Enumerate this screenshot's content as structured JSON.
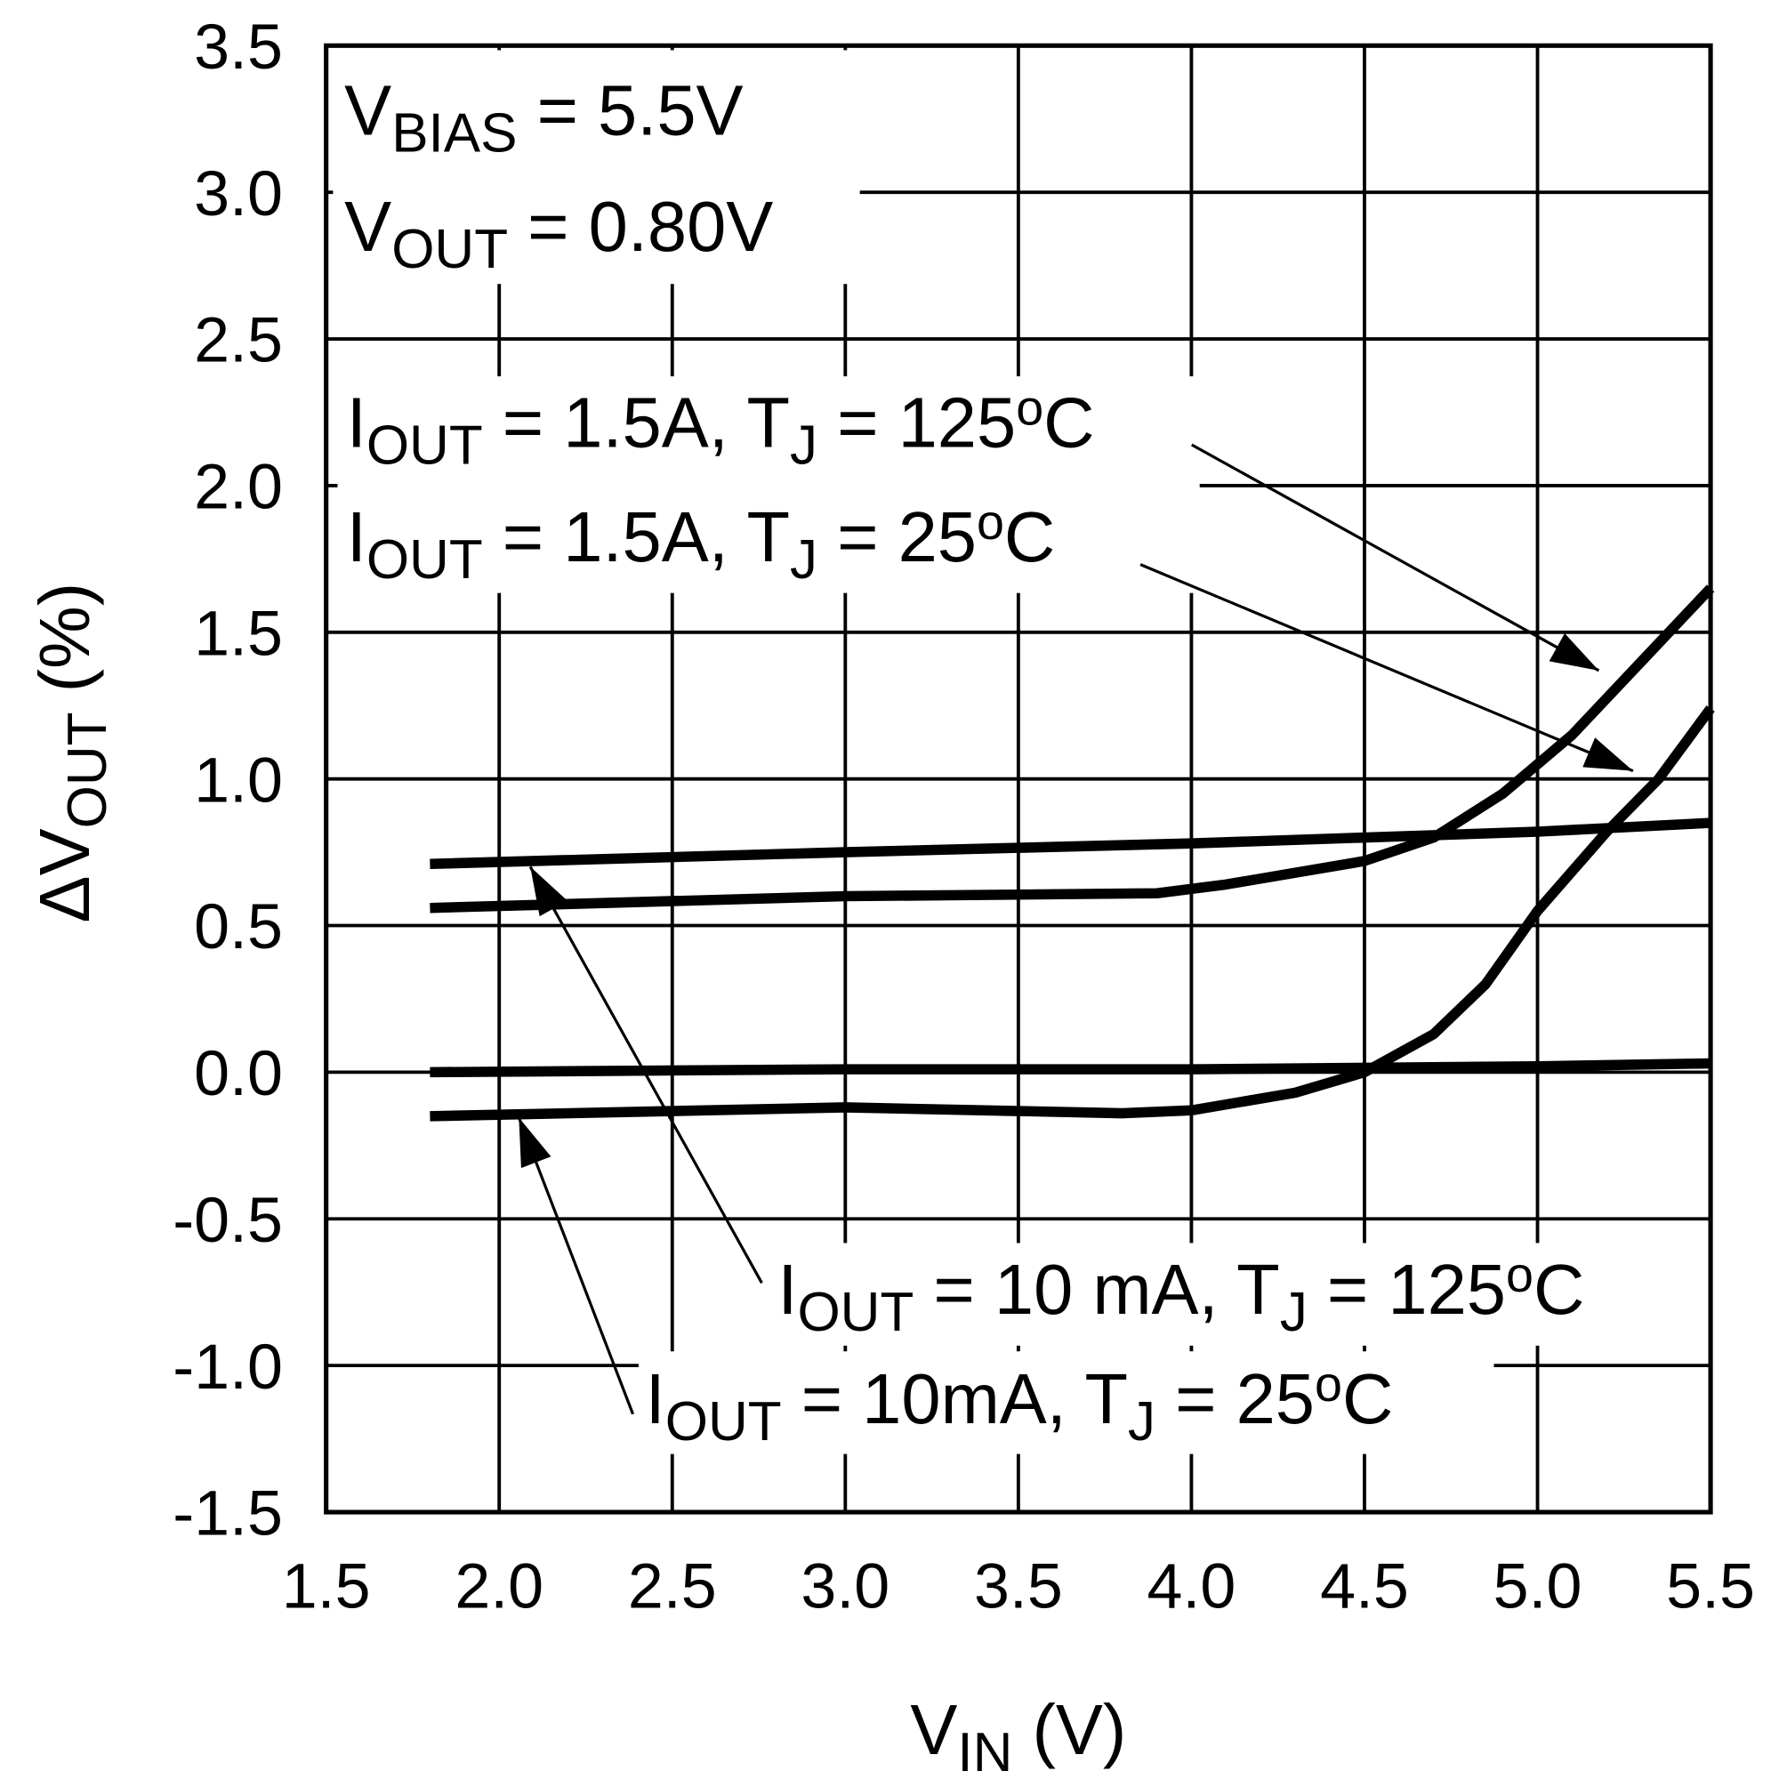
{
  "chart_data": {
    "type": "line",
    "xlabel": {
      "main": "V",
      "sub": "IN",
      "rest": " (V)"
    },
    "ylabel": {
      "prefix": "ΔV",
      "sub": "OUT",
      "rest": " (%)"
    },
    "xlim": [
      1.5,
      5.5
    ],
    "ylim": [
      -1.5,
      3.5
    ],
    "xticks": [
      "1.5",
      "2.0",
      "2.5",
      "3.0",
      "3.5",
      "4.0",
      "4.5",
      "5.0",
      "5.5"
    ],
    "yticks": [
      "3.5",
      "3.0",
      "2.5",
      "2.0",
      "1.5",
      "1.0",
      "0.5",
      "0.0",
      "-0.5",
      "-1.0",
      "-1.5"
    ],
    "grid": true,
    "line_color": "#000000",
    "conditions": [
      [
        {
          "t": "V"
        },
        {
          "t": "BIAS",
          "sub": true
        },
        {
          "t": " = 5.5V"
        }
      ],
      [
        {
          "t": "V"
        },
        {
          "t": "OUT",
          "sub": true
        },
        {
          "t": " = 0.80V"
        }
      ]
    ],
    "series": [
      {
        "name_parts": [
          {
            "t": "I"
          },
          {
            "t": "OUT",
            "sub": true
          },
          {
            "t": " = 10 mA, T"
          },
          {
            "t": "J",
            "sub": true
          },
          {
            "t": " = 125"
          },
          {
            "t": "o",
            "sup": true
          },
          {
            "t": "C"
          }
        ],
        "x": [
          1.8,
          3.0,
          4.0,
          5.0,
          5.5
        ],
        "y": [
          0.71,
          0.75,
          0.78,
          0.82,
          0.85
        ]
      },
      {
        "name_parts": [
          {
            "t": "I"
          },
          {
            "t": "OUT",
            "sub": true
          },
          {
            "t": " = 1.5A, T"
          },
          {
            "t": "J",
            "sub": true
          },
          {
            "t": " = 125"
          },
          {
            "t": "o",
            "sup": true
          },
          {
            "t": "C"
          }
        ],
        "x": [
          1.8,
          3.0,
          3.9,
          4.1,
          4.5,
          4.7,
          4.9,
          5.1,
          5.3,
          5.5
        ],
        "y": [
          0.56,
          0.6,
          0.61,
          0.64,
          0.72,
          0.8,
          0.95,
          1.15,
          1.4,
          1.65
        ]
      },
      {
        "name_parts": [
          {
            "t": "I"
          },
          {
            "t": "OUT",
            "sub": true
          },
          {
            "t": " = 10mA, T"
          },
          {
            "t": "J",
            "sub": true
          },
          {
            "t": " = 25"
          },
          {
            "t": "o",
            "sup": true
          },
          {
            "t": "C"
          }
        ],
        "x": [
          1.8,
          3.0,
          4.0,
          5.0,
          5.5
        ],
        "y": [
          0.0,
          0.01,
          0.01,
          0.02,
          0.03
        ]
      },
      {
        "name_parts": [
          {
            "t": "I"
          },
          {
            "t": "OUT",
            "sub": true
          },
          {
            "t": " = 1.5A, T"
          },
          {
            "t": "J",
            "sub": true
          },
          {
            "t": " = 25"
          },
          {
            "t": "o",
            "sup": true
          },
          {
            "t": "C"
          }
        ],
        "x": [
          1.8,
          3.0,
          3.8,
          4.0,
          4.3,
          4.5,
          4.7,
          4.85,
          5.0,
          5.2,
          5.35,
          5.5
        ],
        "y": [
          -0.15,
          -0.12,
          -0.14,
          -0.13,
          -0.07,
          0.0,
          0.13,
          0.3,
          0.55,
          0.82,
          1.0,
          1.24
        ]
      }
    ]
  }
}
